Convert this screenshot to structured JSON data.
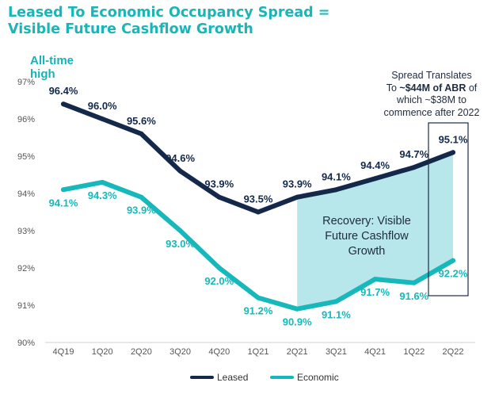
{
  "title": {
    "line1": "Leased To Economic Occupancy Spread =",
    "line2": "Visible Future Cashflow Growth"
  },
  "annotations": {
    "all_time_high": [
      "All-time",
      "high"
    ],
    "spread": {
      "line1": "Spread Translates",
      "line2_prefix": "To ",
      "line2_bold": "~$44M of ABR",
      "line2_suffix": " of",
      "line3": "which ~$38M to",
      "line4": "commence after 2022"
    },
    "recovery": [
      "Recovery: Visible",
      "Future Cashflow",
      "Growth"
    ]
  },
  "colors": {
    "leased": "#14294a",
    "economic": "#17b8bb",
    "shade": "#b7e7ea",
    "title": "#1ab5b7",
    "axis_text": "#555555"
  },
  "chart_data": {
    "type": "line",
    "categories": [
      "4Q19",
      "1Q20",
      "2Q20",
      "3Q20",
      "4Q20",
      "1Q21",
      "2Q21",
      "3Q21",
      "4Q21",
      "1Q22",
      "2Q22"
    ],
    "series": [
      {
        "name": "Leased",
        "values": [
          96.4,
          96.0,
          95.6,
          94.6,
          93.9,
          93.5,
          93.9,
          94.1,
          94.4,
          94.7,
          95.1
        ],
        "labels": [
          "96.4%",
          "96.0%",
          "95.6%",
          "94.6%",
          "93.9%",
          "93.5%",
          "93.9%",
          "94.1%",
          "94.4%",
          "94.7%",
          "95.1%"
        ]
      },
      {
        "name": "Economic",
        "values": [
          94.1,
          94.3,
          93.9,
          93.0,
          92.0,
          91.2,
          90.9,
          91.1,
          91.7,
          91.6,
          92.2
        ],
        "labels": [
          "94.1%",
          "94.3%",
          "93.9%",
          "93.0%",
          "92.0%",
          "91.2%",
          "90.9%",
          "91.1%",
          "91.7%",
          "91.6%",
          "92.2%"
        ]
      }
    ],
    "ylim": [
      90,
      97
    ],
    "yticks": [
      "90%",
      "91%",
      "92%",
      "93%",
      "94%",
      "95%",
      "96%",
      "97%"
    ],
    "grid": false,
    "legend": "bottom"
  }
}
